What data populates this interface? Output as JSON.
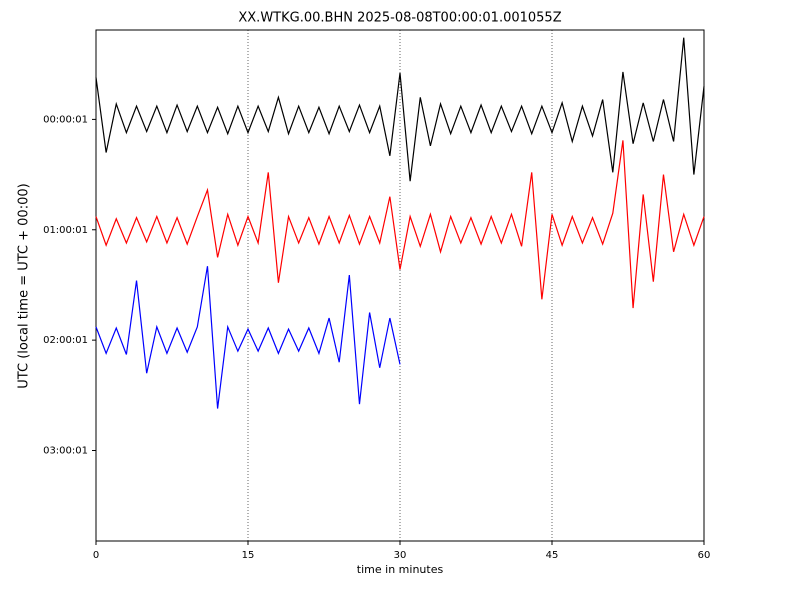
{
  "chart_data": {
    "type": "dayplot",
    "title": "XX.WTKG.00.BHN 2025-08-08T00:00:01.001055Z",
    "x_label": "time in minutes",
    "y_label": "UTC (local time = UTC + 00:00)",
    "xlim": [
      0,
      60
    ],
    "xticks": [
      0,
      15,
      30,
      45,
      60
    ],
    "ylim": [
      3.82,
      -0.81
    ],
    "yticks": [
      {
        "value": 0,
        "label": "00:00:01"
      },
      {
        "value": 1,
        "label": "01:00:01"
      },
      {
        "value": 2,
        "label": "02:00:01"
      },
      {
        "value": 3,
        "label": "03:00:01"
      }
    ],
    "grid": true,
    "series": [
      {
        "color": "#000000",
        "x": [
          0,
          1,
          2,
          3,
          4,
          5,
          6,
          7,
          8,
          9,
          10,
          11,
          12,
          13,
          14,
          15,
          16,
          17,
          18,
          19,
          20,
          21,
          22,
          23,
          24,
          25,
          26,
          27,
          28,
          29,
          30,
          31,
          32,
          33,
          34,
          35,
          36,
          37,
          38,
          39,
          40,
          41,
          42,
          43,
          44,
          45,
          46,
          47,
          48,
          49,
          50,
          51,
          52,
          53,
          54,
          55,
          56,
          57,
          58,
          59,
          60
        ],
        "values": [
          -0.38,
          0.3,
          -0.14,
          0.12,
          -0.12,
          0.11,
          -0.12,
          0.12,
          -0.13,
          0.11,
          -0.12,
          0.12,
          -0.11,
          0.13,
          -0.12,
          0.12,
          -0.12,
          0.11,
          -0.2,
          0.13,
          -0.12,
          0.12,
          -0.11,
          0.13,
          -0.12,
          0.11,
          -0.13,
          0.12,
          -0.12,
          0.33,
          -0.42,
          0.56,
          -0.2,
          0.24,
          -0.14,
          0.13,
          -0.12,
          0.12,
          -0.13,
          0.12,
          -0.12,
          0.11,
          -0.12,
          0.13,
          -0.12,
          0.12,
          -0.15,
          0.2,
          -0.12,
          0.15,
          -0.18,
          0.48,
          -0.43,
          0.22,
          -0.15,
          0.2,
          -0.18,
          0.2,
          -0.74,
          0.5,
          -0.3
        ]
      },
      {
        "color": "#ff0000",
        "x": [
          0,
          1,
          2,
          3,
          4,
          5,
          6,
          7,
          8,
          9,
          10,
          11,
          12,
          13,
          14,
          15,
          16,
          17,
          18,
          19,
          20,
          21,
          22,
          23,
          24,
          25,
          26,
          27,
          28,
          29,
          30,
          31,
          32,
          33,
          34,
          35,
          36,
          37,
          38,
          39,
          40,
          41,
          42,
          43,
          44,
          45,
          46,
          47,
          48,
          49,
          50,
          51,
          52,
          53,
          54,
          55,
          56,
          57,
          58,
          59,
          60
        ],
        "values": [
          0.88,
          1.14,
          0.9,
          1.12,
          0.89,
          1.11,
          0.88,
          1.12,
          0.89,
          1.13,
          0.88,
          0.64,
          1.25,
          0.86,
          1.14,
          0.88,
          1.12,
          0.48,
          1.48,
          0.88,
          1.12,
          0.89,
          1.13,
          0.88,
          1.12,
          0.87,
          1.13,
          0.88,
          1.12,
          0.7,
          1.36,
          0.88,
          1.15,
          0.86,
          1.2,
          0.88,
          1.12,
          0.89,
          1.13,
          0.88,
          1.12,
          0.86,
          1.15,
          0.48,
          1.63,
          0.86,
          1.14,
          0.88,
          1.12,
          0.89,
          1.13,
          0.85,
          0.19,
          1.71,
          0.68,
          1.47,
          0.5,
          1.2,
          0.86,
          1.14,
          0.88
        ]
      },
      {
        "color": "#0000ff",
        "x": [
          0,
          1,
          2,
          3,
          4,
          5,
          6,
          7,
          8,
          9,
          10,
          11,
          12,
          13,
          14,
          15,
          16,
          17,
          18,
          19,
          20,
          21,
          22,
          23,
          24,
          25,
          26,
          27,
          28,
          29,
          30
        ],
        "values": [
          1.88,
          2.12,
          1.89,
          2.13,
          1.46,
          2.3,
          1.88,
          2.12,
          1.89,
          2.11,
          1.88,
          1.33,
          2.62,
          1.88,
          2.1,
          1.9,
          2.1,
          1.89,
          2.12,
          1.9,
          2.1,
          1.89,
          2.12,
          1.8,
          2.2,
          1.41,
          2.58,
          1.75,
          2.25,
          1.8,
          2.22
        ]
      }
    ]
  }
}
